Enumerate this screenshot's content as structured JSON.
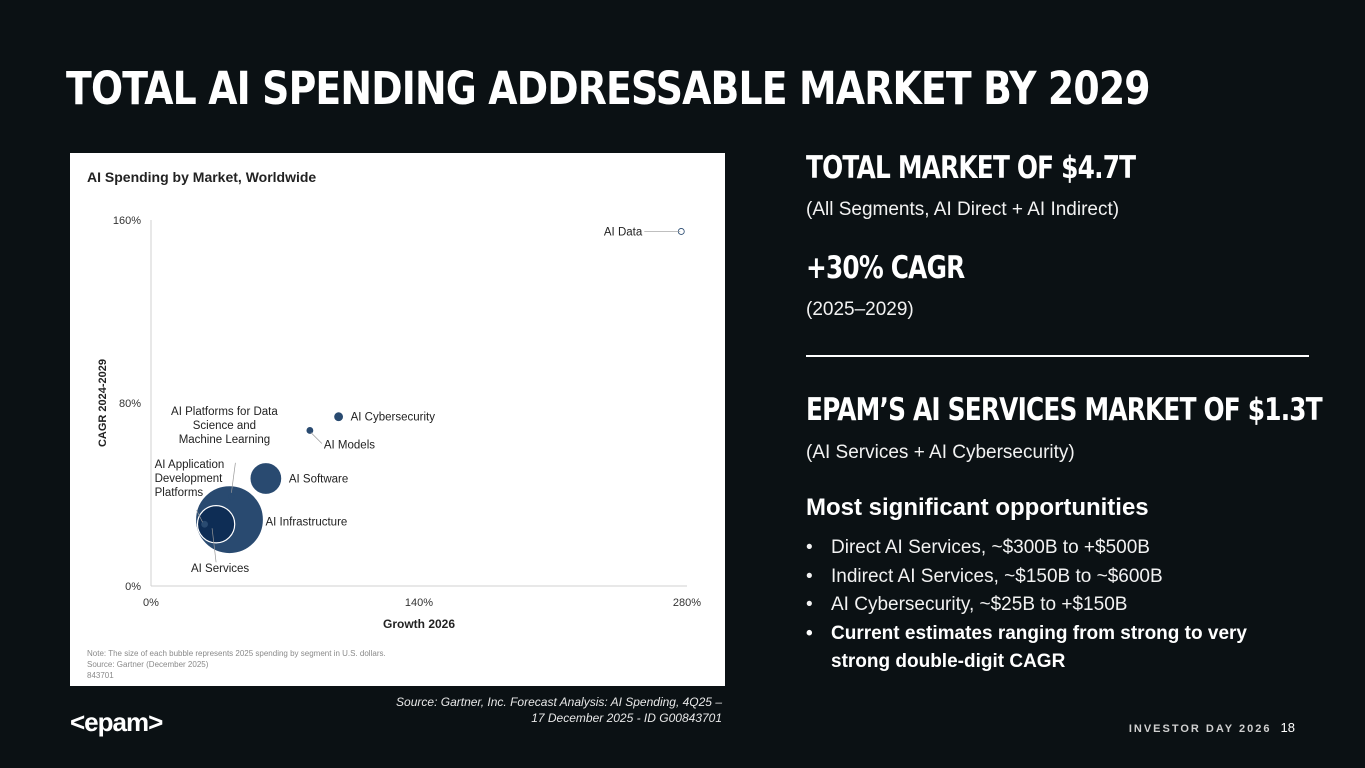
{
  "slide": {
    "title": "TOTAL AI SPENDING ADDRESSABLE MARKET BY 2029",
    "source_caption_line1": "Source: Gartner, Inc. Forecast Analysis: AI Spending, 4Q25 –",
    "source_caption_line2": "17 December 2025 - ID G00843701",
    "logo_text": "<epam>",
    "footer_event": "INVESTOR DAY 2026",
    "page_number": "18"
  },
  "right_panel": {
    "kpi1_title": "TOTAL MARKET OF $4.7T",
    "kpi1_sub": "(All Segments, AI Direct + AI Indirect)",
    "kpi2_title": "+30% CAGR",
    "kpi2_sub": "(2025–2029)",
    "kpi3_title": "EPAM’S AI SERVICES MARKET OF $1.3T",
    "kpi3_sub": "(AI Services + AI Cybersecurity)",
    "opportunities_heading": "Most significant opportunities",
    "bullets": [
      "Direct AI Services, ~$300B to +$500B",
      "Indirect AI Services, ~$150B to ~$600B",
      "AI Cybersecurity, ~$25B to +$150B",
      "Current estimates ranging from strong to very strong double-digit CAGR"
    ]
  },
  "colors": {
    "background": "#0b1114",
    "bubble_fill": "#294a70",
    "bubble_dark": "#0e2d55",
    "bubble_stroke": "#ffffff"
  },
  "chart_data": {
    "type": "scatter",
    "bubble": true,
    "title": "AI Spending by Market, Worldwide",
    "xlabel": "Growth 2026",
    "ylabel": "CAGR 2024-2029",
    "xlim": [
      0,
      280
    ],
    "ylim": [
      0,
      160
    ],
    "x_ticks": [
      0,
      140,
      280
    ],
    "y_ticks": [
      0,
      80,
      160
    ],
    "x_tick_labels": [
      "0%",
      "140%",
      "280%"
    ],
    "y_tick_labels": [
      "0%",
      "80%",
      "160%"
    ],
    "size_unit": "relative 2025 spending",
    "series": [
      {
        "name": "AI Infrastructure",
        "label": "AI Infrastructure",
        "x": 41,
        "y": 29,
        "size": 100,
        "fill": "#294a70"
      },
      {
        "name": "AI Services",
        "label": "AI Services",
        "x": 34,
        "y": 27,
        "size": 30,
        "fill": "#0e2d55"
      },
      {
        "name": "AI Software",
        "label": "AI Software",
        "x": 60,
        "y": 47,
        "size": 22,
        "fill": "#294a70"
      },
      {
        "name": "AI Application Development Platforms",
        "label": [
          "AI Application",
          "Development",
          "Platforms"
        ],
        "x": 28,
        "y": 27,
        "size": 0.2,
        "fill": "#294a70"
      },
      {
        "name": "AI Platforms for Data Science and Machine Learning",
        "label": [
          "AI Platforms for Data",
          "Science and",
          "Machine Learning"
        ],
        "x": 42,
        "y": 39,
        "size": 0.8,
        "fill": "#294a70"
      },
      {
        "name": "AI Models",
        "label": "AI Models",
        "x": 83,
        "y": 68,
        "size": 0.5,
        "fill": "#294a70"
      },
      {
        "name": "AI Cybersecurity",
        "label": "AI Cybersecurity",
        "x": 98,
        "y": 74,
        "size": 1.4,
        "fill": "#294a70"
      },
      {
        "name": "AI Data",
        "label": "AI Data",
        "x": 277,
        "y": 155,
        "size": 0.02,
        "fill": "#294a70"
      }
    ],
    "note_lines": [
      "Note: The size of each bubble represents 2025 spending by segment in U.S. dollars.",
      "Source: Gartner (December 2025)",
      "843701"
    ]
  }
}
